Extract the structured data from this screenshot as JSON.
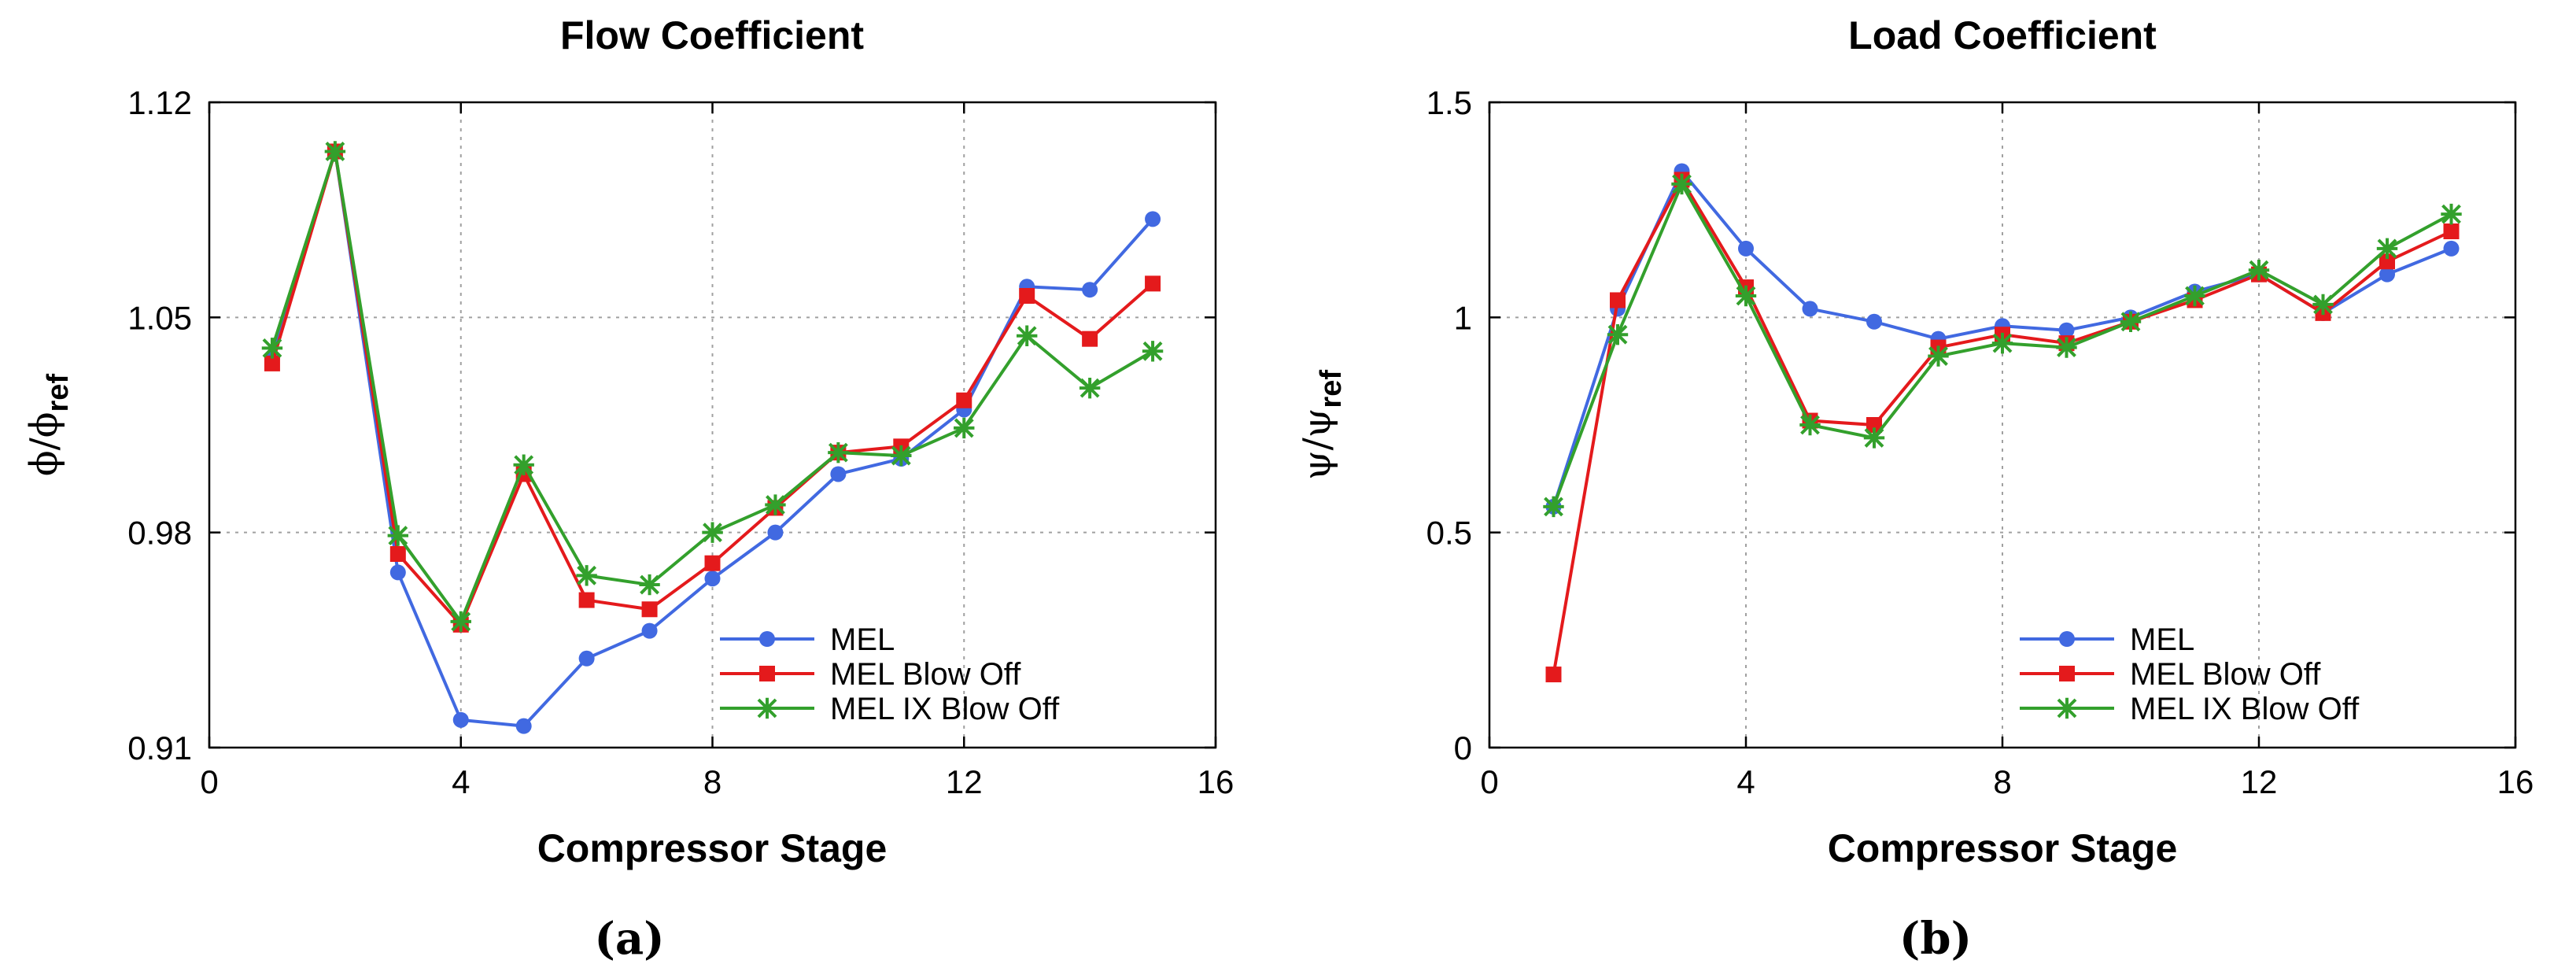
{
  "chart_data": [
    {
      "type": "line",
      "title": "Flow Coefficient",
      "xlabel": "Compressor Stage",
      "ylabel": "ϕ/ϕ",
      "ylabel_sub": "ref",
      "caption": "(a)",
      "xlim": [
        0,
        16
      ],
      "ylim": [
        0.91,
        1.12
      ],
      "xticks": [
        0,
        4,
        8,
        12,
        16
      ],
      "xtick_labels": [
        "0",
        "4",
        "8",
        "12",
        "16"
      ],
      "yticks": [
        0.91,
        0.98,
        1.05,
        1.12
      ],
      "ytick_labels": [
        "0.91",
        "0.98",
        "1.05",
        "1.12"
      ],
      "grid": true,
      "legend_position": "bottom-right",
      "x": [
        1,
        2,
        3,
        4,
        5,
        6,
        7,
        8,
        9,
        10,
        11,
        12,
        13,
        14,
        15
      ],
      "series": [
        {
          "name": "MEL",
          "color": "#4169e1",
          "marker": "circle",
          "values": [
            1.037,
            1.104,
            0.967,
            0.919,
            0.917,
            0.939,
            0.948,
            0.965,
            0.98,
            0.999,
            1.004,
            1.02,
            1.06,
            1.059,
            1.082
          ]
        },
        {
          "name": "MEL Blow Off",
          "color": "#e41a1c",
          "marker": "square",
          "values": [
            1.035,
            1.104,
            0.973,
            0.95,
            0.999,
            0.958,
            0.955,
            0.97,
            0.988,
            1.006,
            1.008,
            1.023,
            1.057,
            1.043,
            1.061
          ]
        },
        {
          "name": "MEL IX Blow Off",
          "color": "#33a02c",
          "marker": "star",
          "values": [
            1.04,
            1.104,
            0.979,
            0.951,
            1.002,
            0.966,
            0.963,
            0.98,
            0.989,
            1.006,
            1.005,
            1.014,
            1.044,
            1.027,
            1.039
          ]
        }
      ]
    },
    {
      "type": "line",
      "title": "Load Coefficient",
      "xlabel": "Compressor Stage",
      "ylabel": "ψ/ψ",
      "ylabel_sub": "ref",
      "caption": "(b)",
      "xlim": [
        0,
        16
      ],
      "ylim": [
        0,
        1.5
      ],
      "xticks": [
        0,
        4,
        8,
        12,
        16
      ],
      "xtick_labels": [
        "0",
        "4",
        "8",
        "12",
        "16"
      ],
      "yticks": [
        0,
        0.5,
        1,
        1.5
      ],
      "ytick_labels": [
        "0",
        "0.5",
        "1",
        "1.5"
      ],
      "grid": true,
      "legend_position": "bottom-right",
      "x": [
        1,
        2,
        3,
        4,
        5,
        6,
        7,
        8,
        9,
        10,
        11,
        12,
        13,
        14,
        15
      ],
      "series": [
        {
          "name": "MEL",
          "color": "#4169e1",
          "marker": "circle",
          "values": [
            0.56,
            1.02,
            1.34,
            1.16,
            1.02,
            0.99,
            0.95,
            0.98,
            0.97,
            1.0,
            1.06,
            1.1,
            1.01,
            1.1,
            1.16
          ]
        },
        {
          "name": "MEL Blow Off",
          "color": "#e41a1c",
          "marker": "square",
          "values": [
            0.17,
            1.04,
            1.32,
            1.07,
            0.76,
            0.75,
            0.93,
            0.96,
            0.94,
            0.99,
            1.04,
            1.1,
            1.01,
            1.13,
            1.2
          ]
        },
        {
          "name": "MEL IX Blow Off",
          "color": "#33a02c",
          "marker": "star",
          "values": [
            0.56,
            0.96,
            1.31,
            1.05,
            0.75,
            0.72,
            0.91,
            0.94,
            0.93,
            0.99,
            1.05,
            1.11,
            1.03,
            1.16,
            1.24
          ]
        }
      ]
    }
  ]
}
